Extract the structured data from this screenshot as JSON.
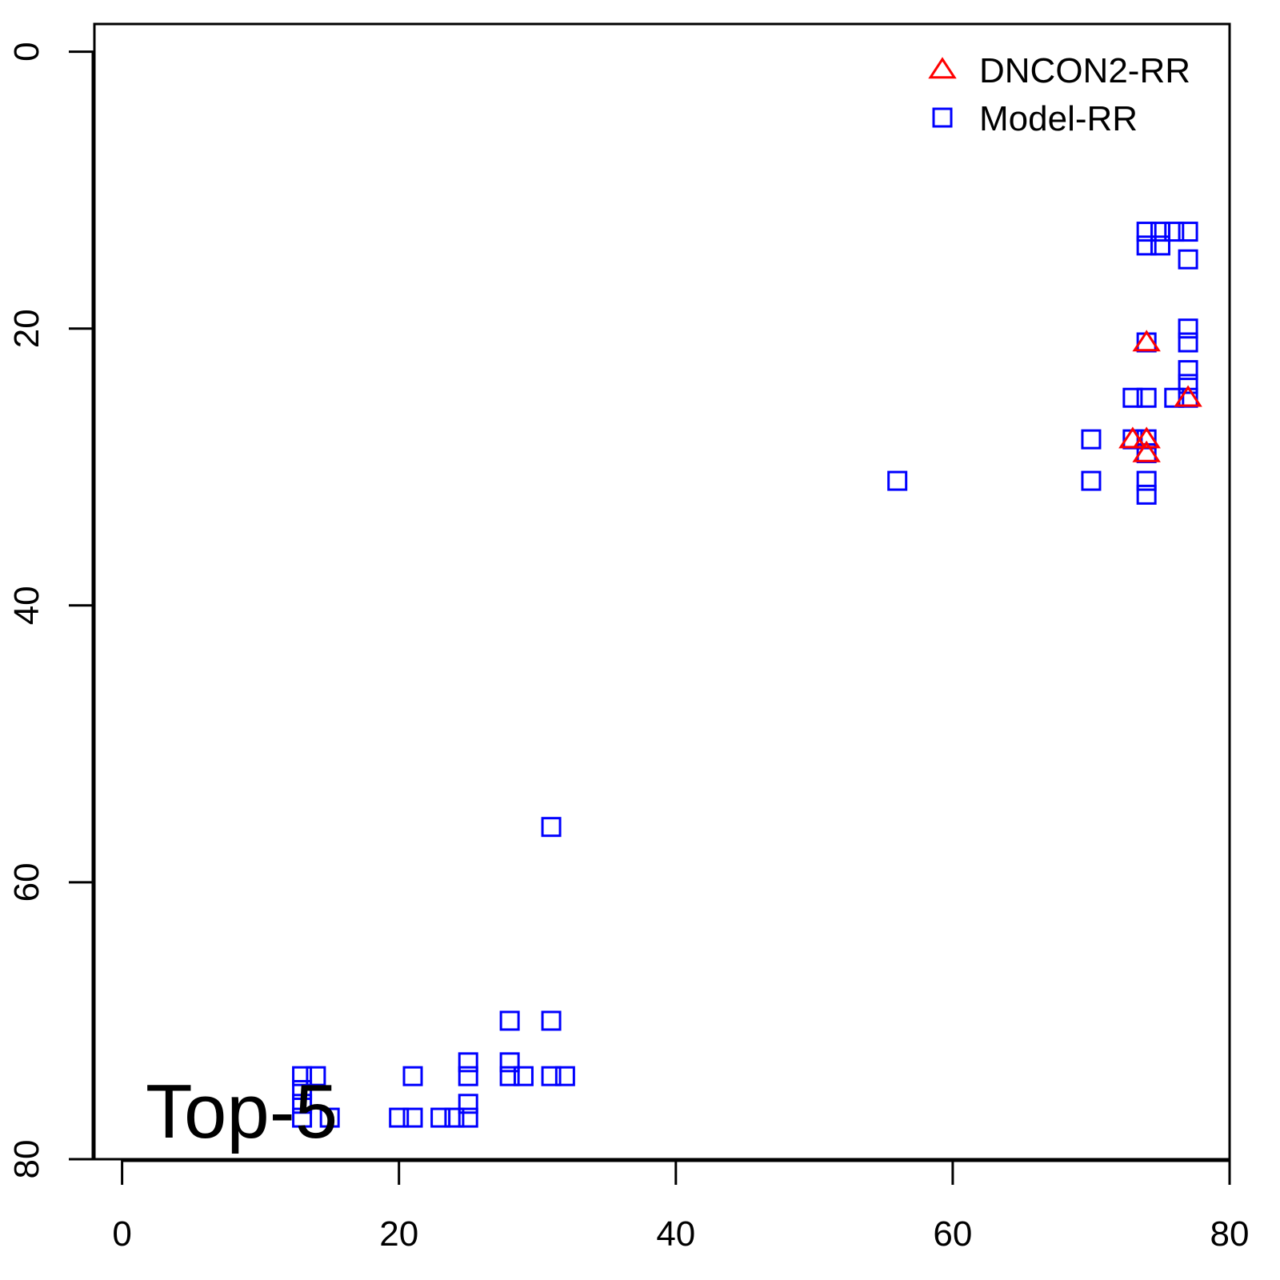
{
  "chart_data": {
    "type": "scatter",
    "annotation": "Top-5",
    "xlim": [
      -2,
      80
    ],
    "ylim": [
      -2,
      80
    ],
    "y_inverted": true,
    "xticks": [
      0,
      20,
      40,
      60,
      80
    ],
    "yticks": [
      0,
      20,
      40,
      60,
      80
    ],
    "legend": "top-right",
    "series": [
      {
        "name": "DNCON2-RR",
        "color": "#ff0000",
        "marker": "triangle",
        "x": [
          74,
          77,
          73,
          74,
          74
        ],
        "values": [
          21,
          25,
          28,
          28,
          29
        ]
      },
      {
        "name": "Model-RR",
        "color": "#0000ff",
        "marker": "square",
        "x": [
          74,
          75,
          76,
          77,
          74,
          75,
          77,
          77,
          77,
          74,
          77,
          77,
          77,
          73,
          74,
          76,
          70,
          73,
          74,
          74,
          56,
          70,
          74,
          74,
          31,
          28,
          31,
          25,
          28,
          13,
          14,
          21,
          25,
          28,
          29,
          31,
          32,
          13,
          13,
          25,
          13,
          15,
          20,
          21,
          23,
          24,
          25
        ],
        "values": [
          13,
          13,
          13,
          13,
          14,
          14,
          15,
          20,
          21,
          21,
          23,
          24,
          25,
          25,
          25,
          25,
          28,
          28,
          28,
          29,
          31,
          31,
          31,
          32,
          56,
          70,
          70,
          73,
          73,
          74,
          74,
          74,
          74,
          74,
          74,
          74,
          74,
          75,
          76,
          76,
          77,
          77,
          77,
          77,
          77,
          77,
          77
        ]
      }
    ]
  }
}
